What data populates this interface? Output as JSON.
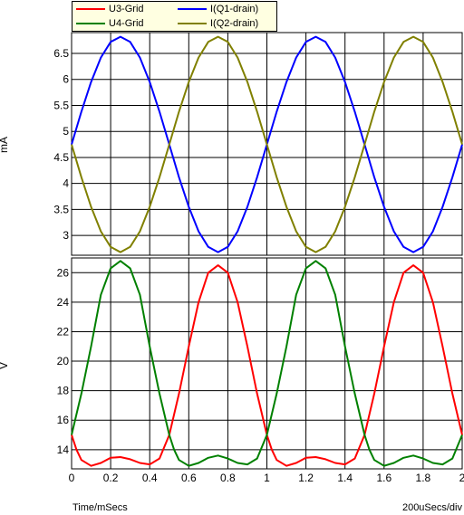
{
  "chart_data": {
    "type": "line",
    "legend_placement": "top",
    "panels": [
      {
        "ylabel": "mA",
        "ylim": [
          2.62,
          6.9
        ],
        "yticks": [
          "3",
          "3.5",
          "4",
          "4.5",
          "5",
          "5.5",
          "6",
          "6.5"
        ],
        "series": [
          {
            "name": "I(Q1-drain)",
            "color": "#0000ff",
            "x": [
              0,
              0.05,
              0.1,
              0.15,
              0.2,
              0.25,
              0.3,
              0.35,
              0.4,
              0.45,
              0.5,
              0.55,
              0.6,
              0.65,
              0.7,
              0.75,
              0.8,
              0.85,
              0.9,
              0.95,
              1.0,
              1.05,
              1.1,
              1.15,
              1.2,
              1.25,
              1.3,
              1.35,
              1.4,
              1.45,
              1.5,
              1.55,
              1.6,
              1.65,
              1.7,
              1.75,
              1.8,
              1.85,
              1.9,
              1.95,
              2.0
            ],
            "y": [
              4.75,
              5.38,
              5.95,
              6.42,
              6.72,
              6.82,
              6.72,
              6.42,
              5.95,
              5.38,
              4.75,
              4.12,
              3.55,
              3.08,
              2.78,
              2.68,
              2.78,
              3.08,
              3.55,
              4.12,
              4.75,
              5.38,
              5.95,
              6.42,
              6.72,
              6.82,
              6.72,
              6.42,
              5.95,
              5.38,
              4.75,
              4.12,
              3.55,
              3.08,
              2.78,
              2.68,
              2.78,
              3.08,
              3.55,
              4.12,
              4.75
            ]
          },
          {
            "name": "I(Q2-drain)",
            "color": "#808000",
            "x": [
              0,
              0.05,
              0.1,
              0.15,
              0.2,
              0.25,
              0.3,
              0.35,
              0.4,
              0.45,
              0.5,
              0.55,
              0.6,
              0.65,
              0.7,
              0.75,
              0.8,
              0.85,
              0.9,
              0.95,
              1.0,
              1.05,
              1.1,
              1.15,
              1.2,
              1.25,
              1.3,
              1.35,
              1.4,
              1.45,
              1.5,
              1.55,
              1.6,
              1.65,
              1.7,
              1.75,
              1.8,
              1.85,
              1.9,
              1.95,
              2.0
            ],
            "y": [
              4.75,
              4.12,
              3.55,
              3.08,
              2.78,
              2.68,
              2.78,
              3.08,
              3.55,
              4.12,
              4.75,
              5.38,
              5.95,
              6.42,
              6.72,
              6.82,
              6.72,
              6.42,
              5.95,
              5.38,
              4.75,
              4.12,
              3.55,
              3.08,
              2.78,
              2.68,
              2.78,
              3.08,
              3.55,
              4.12,
              4.75,
              5.38,
              5.95,
              6.42,
              6.72,
              6.82,
              6.72,
              6.42,
              5.95,
              5.38,
              4.75
            ]
          }
        ]
      },
      {
        "ylabel": "V",
        "ylim": [
          12.7,
          27.0
        ],
        "yticks": [
          "14",
          "16",
          "18",
          "20",
          "22",
          "24",
          "26"
        ],
        "series": [
          {
            "name": "U3-Grid",
            "color": "#ff0000",
            "x": [
              0,
              0.025,
              0.05,
              0.1,
              0.15,
              0.2,
              0.25,
              0.3,
              0.35,
              0.4,
              0.45,
              0.5,
              0.55,
              0.6,
              0.65,
              0.7,
              0.75,
              0.8,
              0.85,
              0.9,
              0.95,
              1.0,
              1.025,
              1.05,
              1.1,
              1.15,
              1.2,
              1.25,
              1.3,
              1.35,
              1.4,
              1.45,
              1.5,
              1.55,
              1.6,
              1.65,
              1.7,
              1.75,
              1.8,
              1.85,
              1.9,
              1.95,
              2.0
            ],
            "y": [
              15.0,
              14.0,
              13.3,
              12.9,
              13.1,
              13.45,
              13.5,
              13.35,
              13.1,
              13.0,
              13.4,
              15.0,
              17.8,
              21.0,
              24.0,
              26.0,
              26.5,
              26.0,
              24.0,
              21.0,
              17.8,
              15.0,
              14.0,
              13.3,
              12.9,
              13.1,
              13.45,
              13.5,
              13.35,
              13.1,
              13.0,
              13.4,
              15.0,
              17.8,
              21.0,
              24.0,
              26.0,
              26.5,
              26.0,
              24.0,
              21.0,
              17.8,
              15.0
            ]
          },
          {
            "name": "U4-Grid",
            "color": "#008000",
            "x": [
              0,
              0.05,
              0.1,
              0.15,
              0.2,
              0.25,
              0.3,
              0.35,
              0.4,
              0.45,
              0.5,
              0.525,
              0.55,
              0.6,
              0.65,
              0.7,
              0.75,
              0.8,
              0.85,
              0.9,
              0.95,
              1.0,
              1.05,
              1.1,
              1.15,
              1.2,
              1.25,
              1.3,
              1.35,
              1.4,
              1.45,
              1.5,
              1.525,
              1.55,
              1.6,
              1.65,
              1.7,
              1.75,
              1.8,
              1.85,
              1.9,
              1.95,
              2.0
            ],
            "y": [
              15.0,
              17.8,
              21.0,
              24.5,
              26.3,
              26.8,
              26.3,
              24.5,
              21.0,
              17.8,
              15.0,
              14.0,
              13.3,
              12.9,
              13.1,
              13.45,
              13.6,
              13.4,
              13.1,
              13.0,
              13.4,
              15.0,
              17.8,
              21.0,
              24.5,
              26.3,
              26.8,
              26.3,
              24.5,
              21.0,
              17.8,
              15.0,
              14.0,
              13.3,
              12.9,
              13.1,
              13.45,
              13.6,
              13.4,
              13.1,
              13.0,
              13.4,
              15.0
            ]
          }
        ]
      }
    ],
    "xlim": [
      0,
      2
    ],
    "xticks": [
      "0",
      "0.2",
      "0.4",
      "0.6",
      "0.8",
      "1",
      "1.2",
      "1.4",
      "1.6",
      "1.8",
      "2"
    ],
    "xlabel": "Time/mSecs",
    "xscale_text": "200uSecs/div"
  }
}
